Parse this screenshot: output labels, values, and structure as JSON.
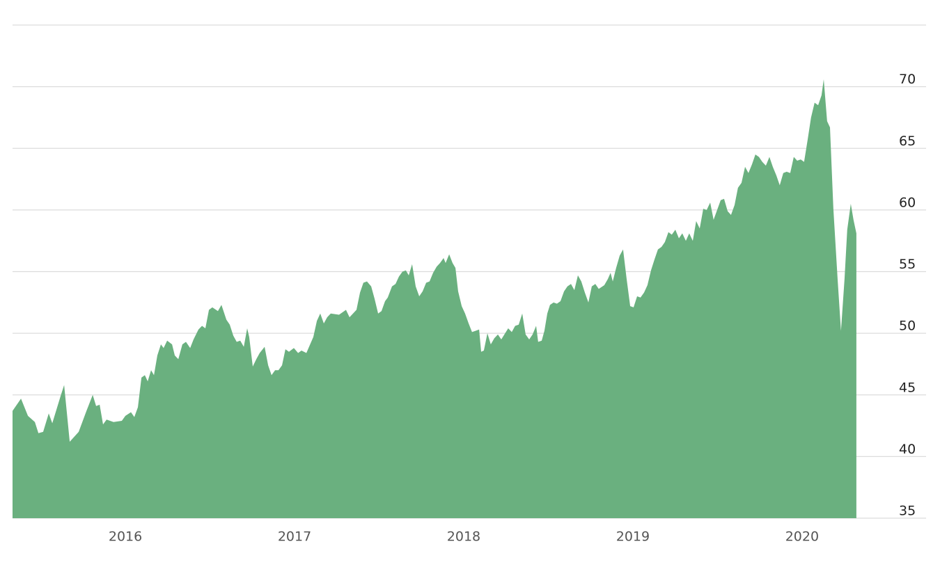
{
  "chart_data": {
    "type": "area",
    "color": "#6ab07f",
    "grid": true,
    "xlim": [
      2015.333,
      2020.733
    ],
    "xticks": [
      2016,
      2017,
      2018,
      2019,
      2020
    ],
    "ylim": [
      35,
      75
    ],
    "yticks": [
      35,
      40,
      45,
      50,
      55,
      60,
      65,
      70
    ],
    "x": [
      2015.333,
      2015.383,
      2015.424,
      2015.465,
      2015.486,
      2015.514,
      2015.547,
      2015.568,
      2015.617,
      2015.638,
      2015.671,
      2015.691,
      2015.724,
      2015.77,
      2015.807,
      2015.827,
      2015.848,
      2015.868,
      2015.889,
      2015.93,
      2015.979,
      2016.0,
      2016.033,
      2016.053,
      2016.074,
      2016.095,
      2016.115,
      2016.132,
      2016.152,
      2016.169,
      2016.189,
      2016.21,
      2016.226,
      2016.247,
      2016.276,
      2016.292,
      2016.313,
      2016.337,
      2016.358,
      2016.383,
      2016.403,
      2016.432,
      2016.453,
      2016.473,
      2016.494,
      2016.514,
      2016.547,
      2016.568,
      2016.597,
      2016.617,
      2016.638,
      2016.658,
      2016.679,
      2016.7,
      2016.72,
      2016.732,
      2016.753,
      2016.774,
      2016.794,
      2016.823,
      2016.844,
      2016.864,
      2016.885,
      2016.905,
      2016.926,
      2016.946,
      2016.967,
      2016.996,
      2017.021,
      2017.041,
      2017.07,
      2017.111,
      2017.132,
      2017.152,
      2017.173,
      2017.193,
      2017.214,
      2017.263,
      2017.304,
      2017.325,
      2017.366,
      2017.387,
      2017.407,
      2017.428,
      2017.453,
      2017.473,
      2017.494,
      2017.514,
      2017.535,
      2017.551,
      2017.576,
      2017.597,
      2017.617,
      2017.638,
      2017.658,
      2017.675,
      2017.695,
      2017.716,
      2017.737,
      2017.757,
      2017.778,
      2017.798,
      2017.819,
      2017.84,
      2017.86,
      2017.881,
      2017.893,
      2017.914,
      2017.934,
      2017.951,
      2017.967,
      2017.988,
      2018.008,
      2018.029,
      2018.049,
      2018.07,
      2018.091,
      2018.103,
      2018.119,
      2018.14,
      2018.16,
      2018.181,
      2018.202,
      2018.222,
      2018.263,
      2018.284,
      2018.304,
      2018.325,
      2018.346,
      2018.366,
      2018.387,
      2018.407,
      2018.428,
      2018.44,
      2018.461,
      2018.477,
      2018.494,
      2018.51,
      2018.531,
      2018.551,
      2018.572,
      2018.593,
      2018.613,
      2018.634,
      2018.654,
      2018.675,
      2018.695,
      2018.716,
      2018.737,
      2018.757,
      2018.778,
      2018.798,
      2018.831,
      2018.852,
      2018.868,
      2018.881,
      2018.901,
      2018.922,
      2018.942,
      2018.963,
      2018.984,
      2019.004,
      2019.025,
      2019.045,
      2019.066,
      2019.086,
      2019.107,
      2019.128,
      2019.148,
      2019.169,
      2019.189,
      2019.21,
      2019.23,
      2019.251,
      2019.272,
      2019.292,
      2019.313,
      2019.333,
      2019.354,
      2019.374,
      2019.395,
      2019.416,
      2019.436,
      2019.457,
      2019.477,
      2019.498,
      2019.519,
      2019.539,
      2019.56,
      2019.58,
      2019.601,
      2019.621,
      2019.642,
      2019.663,
      2019.683,
      2019.704,
      2019.724,
      2019.745,
      2019.765,
      2019.786,
      2019.807,
      2019.827,
      2019.848,
      2019.868,
      2019.889,
      2019.909,
      2019.93,
      2019.951,
      2019.971,
      2019.992,
      2020.012,
      2020.033,
      2020.053,
      2020.074,
      2020.095,
      2020.115,
      2020.128,
      2020.148,
      2020.165,
      2020.185,
      2020.21,
      2020.23,
      2020.251,
      2020.267,
      2020.288,
      2020.304,
      2020.321
    ],
    "values": [
      43.7,
      44.7,
      43.3,
      42.8,
      41.9,
      42.0,
      43.5,
      42.7,
      44.9,
      45.8,
      41.2,
      41.5,
      42.0,
      43.7,
      45.0,
      44.1,
      44.2,
      42.6,
      43.0,
      42.8,
      42.9,
      43.3,
      43.6,
      43.2,
      44.0,
      46.4,
      46.6,
      46.1,
      47.0,
      46.6,
      48.2,
      49.1,
      48.8,
      49.4,
      49.1,
      48.2,
      47.9,
      49.1,
      49.3,
      48.8,
      49.5,
      50.3,
      50.6,
      50.4,
      51.9,
      52.1,
      51.8,
      52.3,
      51.1,
      50.7,
      49.8,
      49.3,
      49.4,
      48.9,
      50.4,
      49.7,
      47.3,
      47.9,
      48.4,
      48.9,
      47.4,
      46.6,
      47.0,
      47.0,
      47.4,
      48.7,
      48.5,
      48.8,
      48.4,
      48.6,
      48.4,
      49.7,
      51.0,
      51.6,
      50.8,
      51.3,
      51.6,
      51.5,
      51.9,
      51.3,
      51.9,
      53.3,
      54.1,
      54.2,
      53.8,
      52.8,
      51.6,
      51.8,
      52.6,
      52.9,
      53.8,
      54.0,
      54.6,
      55.0,
      55.1,
      54.7,
      55.6,
      53.8,
      53.0,
      53.4,
      54.1,
      54.2,
      54.9,
      55.4,
      55.7,
      56.1,
      55.7,
      56.4,
      55.7,
      55.3,
      53.4,
      52.2,
      51.6,
      50.8,
      50.1,
      50.2,
      50.3,
      48.5,
      48.6,
      50.0,
      49.1,
      49.6,
      49.9,
      49.5,
      50.4,
      50.1,
      50.6,
      50.7,
      51.6,
      49.9,
      49.5,
      49.9,
      50.6,
      49.3,
      49.4,
      50.2,
      51.6,
      52.3,
      52.5,
      52.4,
      52.6,
      53.4,
      53.8,
      54.0,
      53.5,
      54.7,
      54.2,
      53.3,
      52.5,
      53.8,
      54.0,
      53.6,
      53.9,
      54.4,
      54.9,
      54.2,
      55.3,
      56.3,
      56.8,
      54.4,
      52.2,
      52.1,
      53.0,
      52.9,
      53.3,
      53.9,
      55.1,
      56.0,
      56.8,
      57.0,
      57.4,
      58.2,
      58.0,
      58.4,
      57.7,
      58.1,
      57.5,
      58.1,
      57.5,
      59.1,
      58.5,
      60.1,
      60.0,
      60.6,
      59.2,
      60.0,
      60.8,
      60.9,
      59.9,
      59.6,
      60.4,
      61.8,
      62.2,
      63.5,
      63.0,
      63.7,
      64.5,
      64.3,
      63.9,
      63.6,
      64.3,
      63.5,
      62.8,
      62.0,
      63.0,
      63.1,
      63.0,
      64.3,
      64.0,
      64.1,
      63.9,
      65.7,
      67.5,
      68.7,
      68.5,
      69.3,
      70.6,
      67.2,
      66.7,
      60.1,
      54.4,
      50.2,
      54.4,
      58.4,
      60.5,
      59.2,
      58.1
    ]
  }
}
